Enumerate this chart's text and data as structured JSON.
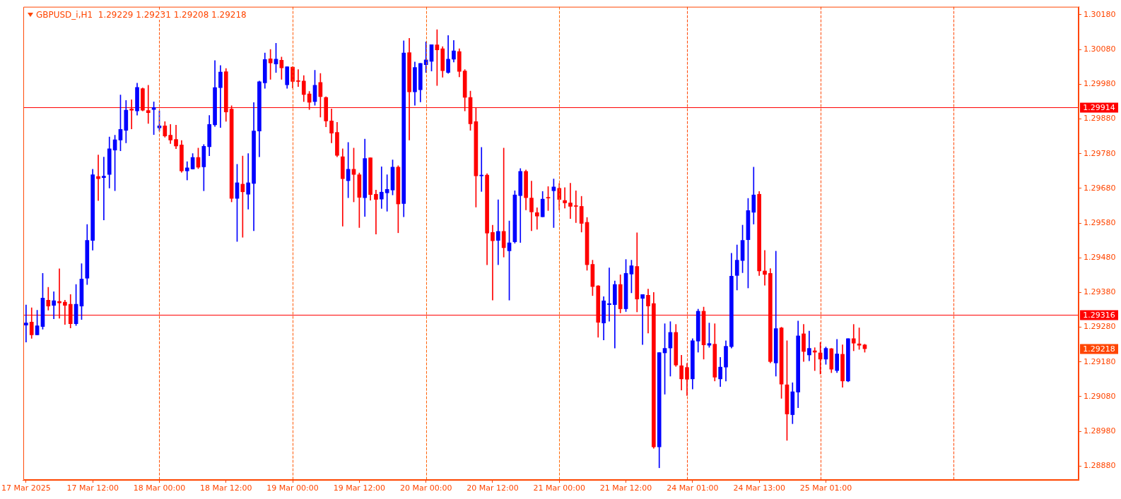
{
  "chart_data": {
    "type": "candlestick",
    "title": "GBPUSD_i,H1  1.29229 1.29231 1.29208 1.29218",
    "categories": [
      "17 Mar 2025",
      null,
      null,
      null,
      null,
      null,
      null,
      null,
      null,
      null,
      null,
      null,
      "17 Mar 12:00",
      null,
      null,
      null,
      null,
      null,
      null,
      null,
      null,
      null,
      null,
      null,
      "18 Mar 00:00",
      null,
      null,
      null,
      null,
      null,
      null,
      null,
      null,
      null,
      null,
      null,
      "18 Mar 12:00",
      null,
      null,
      null,
      null,
      null,
      null,
      null,
      null,
      null,
      null,
      null,
      "19 Mar 00:00",
      null,
      null,
      null,
      null,
      null,
      null,
      null,
      null,
      null,
      null,
      null,
      "19 Mar 12:00",
      null,
      null,
      null,
      null,
      null,
      null,
      null,
      null,
      null,
      null,
      null,
      "20 Mar 00:00",
      null,
      null,
      null,
      null,
      null,
      null,
      null,
      null,
      null,
      null,
      null,
      "20 Mar 12:00",
      null,
      null,
      null,
      null,
      null,
      null,
      null,
      null,
      null,
      null,
      null,
      "21 Mar 00:00",
      null,
      null,
      null,
      null,
      null,
      null,
      null,
      null,
      null,
      null,
      null,
      "21 Mar 12:00",
      null,
      null,
      null,
      null,
      null,
      null,
      null,
      null,
      null,
      null,
      null,
      "24 Mar 01:00",
      null,
      null,
      null,
      null,
      null,
      null,
      null,
      null,
      null,
      null,
      null,
      "24 Mar 13:00",
      null,
      null,
      null,
      null,
      null,
      null,
      null,
      null,
      null,
      null,
      null,
      "25 Mar 01:00",
      null,
      null,
      null,
      null,
      null,
      null,
      null,
      null,
      null,
      null,
      null,
      null,
      null,
      null,
      null,
      null,
      null,
      null,
      null,
      null,
      null,
      null,
      null,
      null,
      null,
      null,
      null,
      null,
      null,
      null,
      null,
      null,
      null,
      null,
      null,
      null,
      null,
      null,
      null,
      null,
      null,
      null,
      null,
      null,
      null
    ],
    "ohlc": [
      [
        1.29286,
        1.29344,
        1.29237,
        1.29292
      ],
      [
        1.29295,
        1.29336,
        1.29248,
        1.29258
      ],
      [
        1.29258,
        1.29329,
        1.29258,
        1.29284
      ],
      [
        1.29282,
        1.29435,
        1.29274,
        1.29364
      ],
      [
        1.29358,
        1.29395,
        1.29329,
        1.29341
      ],
      [
        1.29343,
        1.29382,
        1.29304,
        1.29356
      ],
      [
        1.29354,
        1.29448,
        1.29306,
        1.2935
      ],
      [
        1.29352,
        1.29358,
        1.29288,
        1.29343
      ],
      [
        1.29346,
        1.29374,
        1.29278,
        1.2929
      ],
      [
        1.2929,
        1.29403,
        1.29285,
        1.29346
      ],
      [
        1.29341,
        1.29463,
        1.29302,
        1.29419
      ],
      [
        1.29421,
        1.29576,
        1.29403,
        1.2953
      ],
      [
        1.2953,
        1.29735,
        1.29502,
        1.29719
      ],
      [
        1.29714,
        1.29776,
        1.29645,
        1.29708
      ],
      [
        1.29711,
        1.2977,
        1.29589,
        1.29715
      ],
      [
        1.2972,
        1.29828,
        1.29681,
        1.29794
      ],
      [
        1.2979,
        1.29833,
        1.29673,
        1.2982
      ],
      [
        1.29819,
        1.29949,
        1.29788,
        1.2985
      ],
      [
        1.29847,
        1.29933,
        1.29811,
        1.29905
      ],
      [
        1.29909,
        1.29935,
        1.29851,
        1.29905
      ],
      [
        1.29903,
        1.29983,
        1.29891,
        1.29971
      ],
      [
        1.29967,
        1.29969,
        1.29903,
        1.29905
      ],
      [
        1.29904,
        1.29977,
        1.29867,
        1.29898
      ],
      [
        1.29907,
        1.29929,
        1.29835,
        1.29913
      ],
      [
        1.29854,
        1.29903,
        1.29845,
        1.2986
      ],
      [
        1.2986,
        1.29872,
        1.29827,
        1.29831
      ],
      [
        1.29833,
        1.29864,
        1.29809,
        1.29819
      ],
      [
        1.29821,
        1.29862,
        1.29794,
        1.29802
      ],
      [
        1.29805,
        1.29818,
        1.29726,
        1.2973
      ],
      [
        1.2973,
        1.29757,
        1.29704,
        1.29739
      ],
      [
        1.29736,
        1.2978,
        1.29735,
        1.29769
      ],
      [
        1.29769,
        1.29796,
        1.29737,
        1.29741
      ],
      [
        1.29742,
        1.29806,
        1.29673,
        1.29801
      ],
      [
        1.298,
        1.2989,
        1.29774,
        1.29864
      ],
      [
        1.29863,
        1.30048,
        1.29858,
        1.2997
      ],
      [
        1.2997,
        1.30034,
        1.29855,
        1.30015
      ],
      [
        1.30016,
        1.30025,
        1.29873,
        1.299
      ],
      [
        1.29908,
        1.29918,
        1.29641,
        1.29651
      ],
      [
        1.29651,
        1.29749,
        1.29527,
        1.29696
      ],
      [
        1.29692,
        1.29773,
        1.29539,
        1.2967
      ],
      [
        1.29663,
        1.2978,
        1.2962,
        1.29696
      ],
      [
        1.29694,
        1.29927,
        1.29558,
        1.29845
      ],
      [
        1.29845,
        1.29989,
        1.29771,
        1.29987
      ],
      [
        1.29984,
        1.3007,
        1.29968,
        1.30051
      ],
      [
        1.30053,
        1.3008,
        1.29994,
        1.30041
      ],
      [
        1.30038,
        1.30098,
        1.30014,
        1.30052
      ],
      [
        1.30049,
        1.30058,
        1.29994,
        1.30027
      ],
      [
        1.29978,
        1.3003,
        1.29968,
        1.3003
      ],
      [
        1.30029,
        1.3003,
        1.29969,
        1.29988
      ],
      [
        1.29989,
        1.30022,
        1.29973,
        1.29988
      ],
      [
        1.29989,
        1.30005,
        1.2993,
        1.2995
      ],
      [
        1.29952,
        1.29959,
        1.29907,
        1.29928
      ],
      [
        1.2993,
        1.3002,
        1.29919,
        1.29977
      ],
      [
        1.29985,
        1.30011,
        1.29885,
        1.29944
      ],
      [
        1.29942,
        1.29944,
        1.29857,
        1.29874
      ],
      [
        1.29874,
        1.29909,
        1.29811,
        1.29839
      ],
      [
        1.29841,
        1.2987,
        1.29771,
        1.29775
      ],
      [
        1.29771,
        1.29794,
        1.29571,
        1.29708
      ],
      [
        1.29702,
        1.29812,
        1.29653,
        1.29735
      ],
      [
        1.29735,
        1.29796,
        1.29641,
        1.2972
      ],
      [
        1.29719,
        1.29724,
        1.29567,
        1.29654
      ],
      [
        1.29653,
        1.29822,
        1.29599,
        1.29766
      ],
      [
        1.29768,
        1.29768,
        1.29646,
        1.29662
      ],
      [
        1.29663,
        1.29675,
        1.29548,
        1.29648
      ],
      [
        1.29649,
        1.29742,
        1.29622,
        1.29669
      ],
      [
        1.29667,
        1.29719,
        1.29614,
        1.29677
      ],
      [
        1.29675,
        1.29762,
        1.29661,
        1.29741
      ],
      [
        1.29741,
        1.29745,
        1.29552,
        1.29635
      ],
      [
        1.29636,
        1.30105,
        1.29598,
        1.3007
      ],
      [
        1.30071,
        1.30112,
        1.29819,
        1.29958
      ],
      [
        1.29958,
        1.30044,
        1.29919,
        1.30028
      ],
      [
        1.29964,
        1.3004,
        1.29929,
        1.3004
      ],
      [
        1.30036,
        1.30102,
        1.30014,
        1.3005
      ],
      [
        1.30046,
        1.30094,
        1.30018,
        1.30094
      ],
      [
        1.30093,
        1.30137,
        1.29976,
        1.30079
      ],
      [
        1.30082,
        1.30088,
        1.3,
        1.30019
      ],
      [
        1.30014,
        1.3012,
        1.30011,
        1.30052
      ],
      [
        1.30052,
        1.30106,
        1.30044,
        1.30076
      ],
      [
        1.30074,
        1.30082,
        1.30001,
        1.30017
      ],
      [
        1.30018,
        1.30022,
        1.29903,
        1.29942
      ],
      [
        1.29942,
        1.2996,
        1.29847,
        1.29866
      ],
      [
        1.29872,
        1.29911,
        1.29626,
        1.29716
      ],
      [
        1.29716,
        1.29798,
        1.29671,
        1.29717
      ],
      [
        1.29718,
        1.29722,
        1.2946,
        1.29551
      ],
      [
        1.29553,
        1.29574,
        1.29358,
        1.29529
      ],
      [
        1.2953,
        1.29647,
        1.2946,
        1.29556
      ],
      [
        1.29556,
        1.29796,
        1.29482,
        1.29509
      ],
      [
        1.295,
        1.29586,
        1.29358,
        1.29523
      ],
      [
        1.29526,
        1.29673,
        1.29522,
        1.29661
      ],
      [
        1.29659,
        1.29737,
        1.29524,
        1.29729
      ],
      [
        1.29729,
        1.29733,
        1.29618,
        1.29653
      ],
      [
        1.29652,
        1.29701,
        1.29558,
        1.29612
      ],
      [
        1.2961,
        1.29624,
        1.29562,
        1.296
      ],
      [
        1.29598,
        1.29671,
        1.29598,
        1.29649
      ],
      [
        1.29654,
        1.29685,
        1.29616,
        1.29652
      ],
      [
        1.29673,
        1.29707,
        1.29567,
        1.29684
      ],
      [
        1.2968,
        1.29694,
        1.29618,
        1.29648
      ],
      [
        1.29645,
        1.29682,
        1.29623,
        1.29638
      ],
      [
        1.29638,
        1.29695,
        1.29593,
        1.29628
      ],
      [
        1.2963,
        1.29673,
        1.29581,
        1.29628
      ],
      [
        1.29628,
        1.29657,
        1.29554,
        1.29579
      ],
      [
        1.29582,
        1.29596,
        1.29444,
        1.2946
      ],
      [
        1.29461,
        1.29473,
        1.29371,
        1.29397
      ],
      [
        1.29399,
        1.294,
        1.29251,
        1.29294
      ],
      [
        1.29292,
        1.29368,
        1.29243,
        1.29356
      ],
      [
        1.29345,
        1.29451,
        1.29297,
        1.29348
      ],
      [
        1.29345,
        1.29413,
        1.2922,
        1.29403
      ],
      [
        1.29403,
        1.29431,
        1.29321,
        1.29333
      ],
      [
        1.29333,
        1.29475,
        1.29325,
        1.29435
      ],
      [
        1.29433,
        1.29473,
        1.29379,
        1.29457
      ],
      [
        1.29455,
        1.29552,
        1.29324,
        1.29361
      ],
      [
        1.29363,
        1.29374,
        1.2923,
        1.29374
      ],
      [
        1.29372,
        1.2939,
        1.29263,
        1.29341
      ],
      [
        1.29348,
        1.2938,
        1.28931,
        1.28935
      ],
      [
        1.28935,
        1.29207,
        1.28875,
        1.29207
      ],
      [
        1.29206,
        1.2929,
        1.29087,
        1.29219
      ],
      [
        1.2922,
        1.29296,
        1.29139,
        1.29265
      ],
      [
        1.29265,
        1.29288,
        1.29167,
        1.29171
      ],
      [
        1.29169,
        1.29199,
        1.29099,
        1.29131
      ],
      [
        1.29164,
        1.29176,
        1.29083,
        1.2913
      ],
      [
        1.29131,
        1.29247,
        1.29102,
        1.29241
      ],
      [
        1.2924,
        1.29332,
        1.29208,
        1.29326
      ],
      [
        1.29326,
        1.29338,
        1.29188,
        1.29229
      ],
      [
        1.29228,
        1.29292,
        1.29222,
        1.29233
      ],
      [
        1.29231,
        1.2929,
        1.29125,
        1.29136
      ],
      [
        1.29131,
        1.29193,
        1.29109,
        1.29165
      ],
      [
        1.29165,
        1.29241,
        1.29125,
        1.29225
      ],
      [
        1.29224,
        1.29493,
        1.2922,
        1.29427
      ],
      [
        1.29429,
        1.29517,
        1.29387,
        1.29473
      ],
      [
        1.29472,
        1.29574,
        1.29437,
        1.2953
      ],
      [
        1.29532,
        1.29651,
        1.29393,
        1.29616
      ],
      [
        1.29611,
        1.29741,
        1.29577,
        1.29661
      ],
      [
        1.29663,
        1.29671,
        1.29429,
        1.29442
      ],
      [
        1.29442,
        1.29501,
        1.29401,
        1.29432
      ],
      [
        1.29435,
        1.29449,
        1.29177,
        1.29181
      ],
      [
        1.29177,
        1.29499,
        1.29139,
        1.29276
      ],
      [
        1.29278,
        1.2928,
        1.29075,
        1.29116
      ],
      [
        1.29114,
        1.29241,
        1.28954,
        1.2903
      ],
      [
        1.29028,
        1.2912,
        1.29002,
        1.29094
      ],
      [
        1.29093,
        1.29298,
        1.29048,
        1.29255
      ],
      [
        1.29261,
        1.29288,
        1.29181,
        1.2921
      ],
      [
        1.292,
        1.29269,
        1.29183,
        1.29219
      ],
      [
        1.29212,
        1.29221,
        1.29155,
        1.29208
      ],
      [
        1.29206,
        1.29236,
        1.29145,
        1.29188
      ],
      [
        1.29188,
        1.29223,
        1.29173,
        1.29219
      ],
      [
        1.29218,
        1.29219,
        1.29149,
        1.29159
      ],
      [
        1.29155,
        1.29245,
        1.29149,
        1.29203
      ],
      [
        1.29202,
        1.29229,
        1.29107,
        1.29125
      ],
      [
        1.29125,
        1.29247,
        1.29123,
        1.29247
      ],
      [
        1.29247,
        1.29288,
        1.29212,
        1.29234
      ],
      [
        1.29232,
        1.29278,
        1.29216,
        1.29228
      ],
      [
        1.29229,
        1.29231,
        1.29208,
        1.29218
      ],
      null,
      null,
      null,
      null,
      null,
      null,
      null,
      null,
      null,
      null,
      null,
      null,
      null,
      null,
      null,
      null,
      null,
      null,
      null,
      null,
      null,
      null,
      null,
      null,
      null,
      null,
      null,
      null,
      null,
      null,
      null,
      null,
      null,
      null,
      null,
      null,
      null,
      null
    ],
    "colors": [
      "#0000ff",
      "#ff0000",
      "#0000ff",
      "#0000ff",
      "#ff0000",
      "#0000ff",
      "#ff0000",
      "#ff0000",
      "#ff0000",
      "#0000ff",
      "#0000ff",
      "#0000ff",
      "#0000ff",
      "#ff0000",
      "#0000ff",
      "#0000ff",
      "#0000ff",
      "#0000ff",
      "#0000ff",
      "#ff0000",
      "#0000ff",
      "#ff0000",
      "#ff0000",
      "#0000ff",
      "#0000ff",
      "#ff0000",
      "#ff0000",
      "#ff0000",
      "#ff0000",
      "#0000ff",
      "#0000ff",
      "#ff0000",
      "#0000ff",
      "#0000ff",
      "#0000ff",
      "#0000ff",
      "#ff0000",
      "#ff0000",
      "#0000ff",
      "#ff0000",
      "#0000ff",
      "#0000ff",
      "#0000ff",
      "#0000ff",
      "#ff0000",
      "#0000ff",
      "#ff0000",
      "#0000ff",
      "#ff0000",
      "#ff0000",
      "#ff0000",
      "#ff0000",
      "#0000ff",
      "#ff0000",
      "#ff0000",
      "#ff0000",
      "#ff0000",
      "#ff0000",
      "#0000ff",
      "#ff0000",
      "#ff0000",
      "#0000ff",
      "#ff0000",
      "#ff0000",
      "#0000ff",
      "#0000ff",
      "#0000ff",
      "#ff0000",
      "#0000ff",
      "#ff0000",
      "#0000ff",
      "#0000ff",
      "#0000ff",
      "#0000ff",
      "#ff0000",
      "#ff0000",
      "#0000ff",
      "#0000ff",
      "#ff0000",
      "#ff0000",
      "#ff0000",
      "#ff0000",
      "#0000ff",
      "#ff0000",
      "#ff0000",
      "#0000ff",
      "#ff0000",
      "#0000ff",
      "#0000ff",
      "#0000ff",
      "#ff0000",
      "#ff0000",
      "#ff0000",
      "#0000ff",
      "#ff0000",
      "#0000ff",
      "#ff0000",
      "#ff0000",
      "#ff0000",
      "#ff0000",
      "#ff0000",
      "#ff0000",
      "#ff0000",
      "#ff0000",
      "#0000ff",
      "#0000ff",
      "#0000ff",
      "#ff0000",
      "#0000ff",
      "#0000ff",
      "#ff0000",
      "#0000ff",
      "#ff0000",
      "#ff0000",
      "#0000ff",
      "#0000ff",
      "#0000ff",
      "#ff0000",
      "#ff0000",
      "#ff0000",
      "#0000ff",
      "#0000ff",
      "#ff0000",
      "#0000ff",
      "#ff0000",
      "#0000ff",
      "#0000ff",
      "#0000ff",
      "#0000ff",
      "#0000ff",
      "#0000ff",
      "#0000ff",
      "#ff0000",
      "#ff0000",
      "#ff0000",
      "#0000ff",
      "#ff0000",
      "#ff0000",
      "#0000ff",
      "#0000ff",
      "#ff0000",
      "#0000ff",
      "#ff0000",
      "#ff0000",
      "#0000ff",
      "#ff0000",
      "#0000ff",
      "#ff0000",
      "#0000ff",
      "#ff0000",
      "#ff0000",
      "#ff0000",
      null,
      null,
      null,
      null,
      null,
      null,
      null,
      null,
      null,
      null,
      null,
      null,
      null,
      null,
      null,
      null,
      null,
      null,
      null,
      null,
      null,
      null,
      null,
      null,
      null,
      null,
      null,
      null,
      null,
      null,
      null,
      null,
      null,
      null,
      null,
      null,
      null,
      null
    ],
    "ylim": [
      1.2884,
      1.30203
    ],
    "yticks": [
      {
        "value": 1.2888,
        "label": "1.28880"
      },
      {
        "value": 1.2898,
        "label": "1.28980"
      },
      {
        "value": 1.2908,
        "label": "1.29080"
      },
      {
        "value": 1.2918,
        "label": "1.29180"
      },
      {
        "value": 1.2928,
        "label": "1.29280"
      },
      {
        "value": 1.2938,
        "label": "1.29380"
      },
      {
        "value": 1.2948,
        "label": "1.29480"
      },
      {
        "value": 1.2958,
        "label": "1.29580"
      },
      {
        "value": 1.2968,
        "label": "1.29680"
      },
      {
        "value": 1.2978,
        "label": "1.29780"
      },
      {
        "value": 1.2988,
        "label": "1.29880"
      },
      {
        "value": 1.2998,
        "label": "1.29980"
      },
      {
        "value": 1.3008,
        "label": "1.30080"
      },
      {
        "value": 1.3018,
        "label": "1.30180"
      }
    ],
    "ref_lines": [
      {
        "axis": "y",
        "value": 1.29914,
        "label": "1.29914",
        "color": "#ff0000"
      },
      {
        "axis": "y",
        "value": 1.29316,
        "label": "1.29316",
        "color": "#ff0000"
      },
      {
        "axis": "x",
        "value": "18 Mar 00:00",
        "color": "#ff5000",
        "line_style": "dashed"
      },
      {
        "axis": "x",
        "value": "19 Mar 00:00",
        "color": "#ff5800",
        "line_style": "dashed"
      },
      {
        "axis": "x",
        "value": "20 Mar 00:00",
        "color": "#ff6000",
        "line_style": "dashed"
      },
      {
        "axis": "x",
        "value": "21 Mar 00:00",
        "color": "#ff6800",
        "line_style": "dashed"
      }
    ],
    "annotations": [
      "1.29218"
    ]
  }
}
